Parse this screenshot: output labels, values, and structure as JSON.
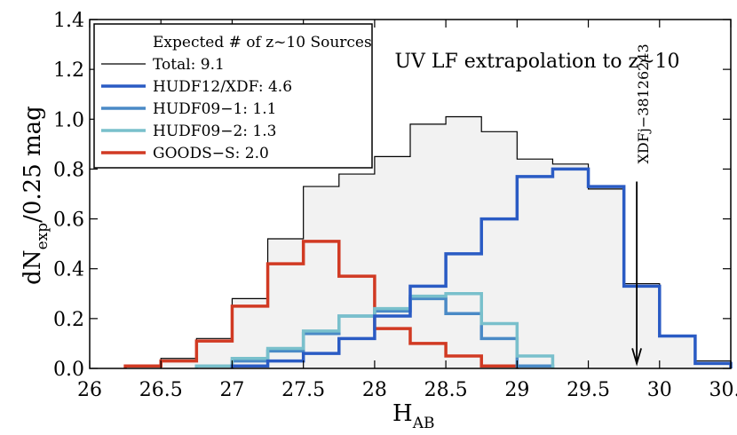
{
  "chart_data": {
    "type": "histogram",
    "title": "UV LF extrapolation to z~10",
    "xlabel_main": "H",
    "xlabel_sub": "AB",
    "ylabel_pre": "dN",
    "ylabel_sub": "exp",
    "ylabel_post": "/0.25 mag",
    "xlim": [
      26,
      30.5
    ],
    "ylim": [
      0,
      1.4
    ],
    "xticks": [
      26,
      26.5,
      27,
      27.5,
      28,
      28.5,
      29,
      29.5,
      30,
      30.5
    ],
    "xtick_labels": [
      "26",
      "26.5",
      "27",
      "27.5",
      "28",
      "28.5",
      "29",
      "29.5",
      "30",
      "30.5"
    ],
    "yticks": [
      0,
      0.2,
      0.4,
      0.6,
      0.8,
      1.0,
      1.2,
      1.4
    ],
    "ytick_labels": [
      "0.0",
      "0.2",
      "0.4",
      "0.6",
      "0.8",
      "1.0",
      "1.2",
      "1.4"
    ],
    "legend": {
      "title": "Expected # of z~10 Sources",
      "entries": [
        {
          "label": "Total: 9.1",
          "series": "total"
        },
        {
          "label": "HUDF12/XDF: 4.6",
          "series": "hudf12"
        },
        {
          "label": "HUDF09−1: 1.1",
          "series": "hudf09_1"
        },
        {
          "label": "HUDF09−2: 1.3",
          "series": "hudf09_2"
        },
        {
          "label": "GOODS−S: 2.0",
          "series": "goods"
        }
      ]
    },
    "annotation": {
      "label": "XDFj−38126243",
      "x": 29.84,
      "y_from": 0.75,
      "y_to": 0.02
    },
    "series": [
      {
        "name": "total",
        "color": "#000000",
        "fill": "#f2f2f2",
        "linewidth": 1.2,
        "bins": [
          [
            26.5,
            26.75,
            0.04
          ],
          [
            26.75,
            27.0,
            0.12
          ],
          [
            27.0,
            27.25,
            0.28
          ],
          [
            27.25,
            27.5,
            0.52
          ],
          [
            27.5,
            27.75,
            0.73
          ],
          [
            27.75,
            28.0,
            0.78
          ],
          [
            28.0,
            28.25,
            0.85
          ],
          [
            28.25,
            28.5,
            0.98
          ],
          [
            28.5,
            28.75,
            1.01
          ],
          [
            28.75,
            29.0,
            0.95
          ],
          [
            29.0,
            29.25,
            0.84
          ],
          [
            29.25,
            29.5,
            0.82
          ],
          [
            29.5,
            29.75,
            0.72
          ],
          [
            29.75,
            30.0,
            0.34
          ],
          [
            30.0,
            30.25,
            0.13
          ],
          [
            30.25,
            30.5,
            0.03
          ]
        ]
      },
      {
        "name": "hudf12",
        "color": "#2a5bc4",
        "linewidth": 3.5,
        "bins": [
          [
            27.0,
            27.25,
            0.01
          ],
          [
            27.25,
            27.5,
            0.03
          ],
          [
            27.5,
            27.75,
            0.06
          ],
          [
            27.75,
            28.0,
            0.12
          ],
          [
            28.0,
            28.25,
            0.21
          ],
          [
            28.25,
            28.5,
            0.33
          ],
          [
            28.5,
            28.75,
            0.46
          ],
          [
            28.75,
            29.0,
            0.6
          ],
          [
            29.0,
            29.25,
            0.77
          ],
          [
            29.25,
            29.5,
            0.8
          ],
          [
            29.5,
            29.75,
            0.73
          ],
          [
            29.75,
            30.0,
            0.33
          ],
          [
            30.0,
            30.25,
            0.13
          ],
          [
            30.25,
            30.5,
            0.02
          ]
        ]
      },
      {
        "name": "hudf09_1",
        "color": "#4a8ac6",
        "linewidth": 3.5,
        "bins": [
          [
            26.75,
            27.0,
            0.01
          ],
          [
            27.0,
            27.25,
            0.03
          ],
          [
            27.25,
            27.5,
            0.07
          ],
          [
            27.5,
            27.75,
            0.14
          ],
          [
            27.75,
            28.0,
            0.21
          ],
          [
            28.0,
            28.25,
            0.23
          ],
          [
            28.25,
            28.5,
            0.28
          ],
          [
            28.5,
            28.75,
            0.22
          ],
          [
            28.75,
            29.0,
            0.12
          ],
          [
            29.0,
            29.25,
            0.01
          ]
        ]
      },
      {
        "name": "hudf09_2",
        "color": "#79c0cc",
        "linewidth": 3.5,
        "bins": [
          [
            26.75,
            27.0,
            0.01
          ],
          [
            27.0,
            27.25,
            0.04
          ],
          [
            27.25,
            27.5,
            0.08
          ],
          [
            27.5,
            27.75,
            0.15
          ],
          [
            27.75,
            28.0,
            0.21
          ],
          [
            28.0,
            28.25,
            0.24
          ],
          [
            28.25,
            28.5,
            0.29
          ],
          [
            28.5,
            28.75,
            0.3
          ],
          [
            28.75,
            29.0,
            0.18
          ],
          [
            29.0,
            29.25,
            0.05
          ]
        ]
      },
      {
        "name": "goods",
        "color": "#d13a23",
        "linewidth": 3.5,
        "bins": [
          [
            26.25,
            26.5,
            0.01
          ],
          [
            26.5,
            26.75,
            0.03
          ],
          [
            26.75,
            27.0,
            0.11
          ],
          [
            27.0,
            27.25,
            0.25
          ],
          [
            27.25,
            27.5,
            0.42
          ],
          [
            27.5,
            27.75,
            0.51
          ],
          [
            27.75,
            28.0,
            0.37
          ],
          [
            28.0,
            28.25,
            0.16
          ],
          [
            28.25,
            28.5,
            0.1
          ],
          [
            28.5,
            28.75,
            0.05
          ],
          [
            28.75,
            29.0,
            0.01
          ]
        ]
      }
    ]
  }
}
